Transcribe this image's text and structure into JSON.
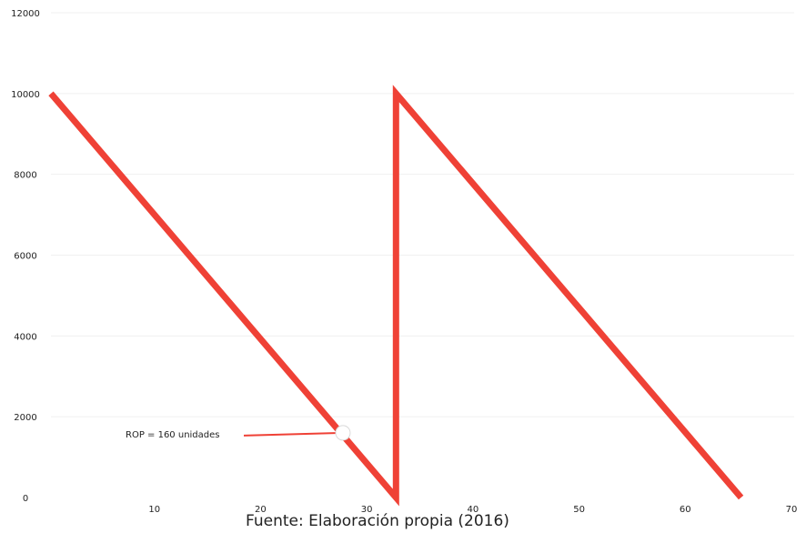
{
  "chart_data": {
    "type": "line",
    "title": "",
    "xlabel": "",
    "ylabel": "",
    "xlim": [
      0,
      70
    ],
    "ylim": [
      0,
      12000
    ],
    "x_ticks": [
      10,
      20,
      30,
      40,
      50,
      60,
      70
    ],
    "y_ticks": [
      0,
      2000,
      4000,
      6000,
      8000,
      10000,
      12000
    ],
    "grid": "horizontal",
    "legend": "none",
    "series": [
      {
        "color": "#ef4136",
        "points": [
          {
            "x": 0,
            "y": 10000
          },
          {
            "x": 32.5,
            "y": 0
          },
          {
            "x": 32.5,
            "y": 10000
          },
          {
            "x": 65,
            "y": 0
          }
        ]
      }
    ],
    "annotation": {
      "text": "ROP = 160 unidades",
      "point": {
        "x": 27.5,
        "y": 1600
      }
    }
  },
  "caption": "Fuente: Elaboración propia (2016)"
}
